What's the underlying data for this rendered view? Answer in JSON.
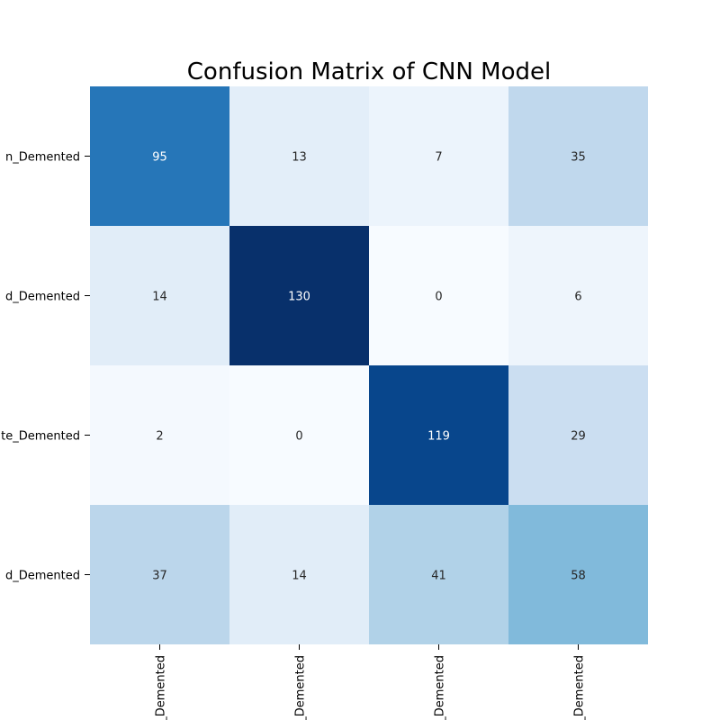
{
  "chart_data": {
    "type": "heatmap",
    "title": "Confusion Matrix of CNN Model",
    "row_labels": [
      "Non_Demented",
      "Mild_Demented",
      "Moderate_Demented",
      "Very_Mild_Demented"
    ],
    "col_labels": [
      "Non_Demented",
      "Mild_Demented",
      "Moderate_Demented",
      "Very_Mild_Demented"
    ],
    "row_labels_visible": [
      "n_Demented",
      "d_Demented",
      "te_Demented",
      "d_Demented"
    ],
    "col_labels_visible": [
      "_Demented",
      "_Demented",
      "_Demented",
      "_Demented"
    ],
    "values": [
      [
        95,
        13,
        7,
        35
      ],
      [
        14,
        130,
        0,
        6
      ],
      [
        2,
        0,
        119,
        29
      ],
      [
        37,
        14,
        41,
        58
      ]
    ],
    "colormap": "Blues",
    "vmin": 0,
    "vmax": 130,
    "colorbar": false
  }
}
